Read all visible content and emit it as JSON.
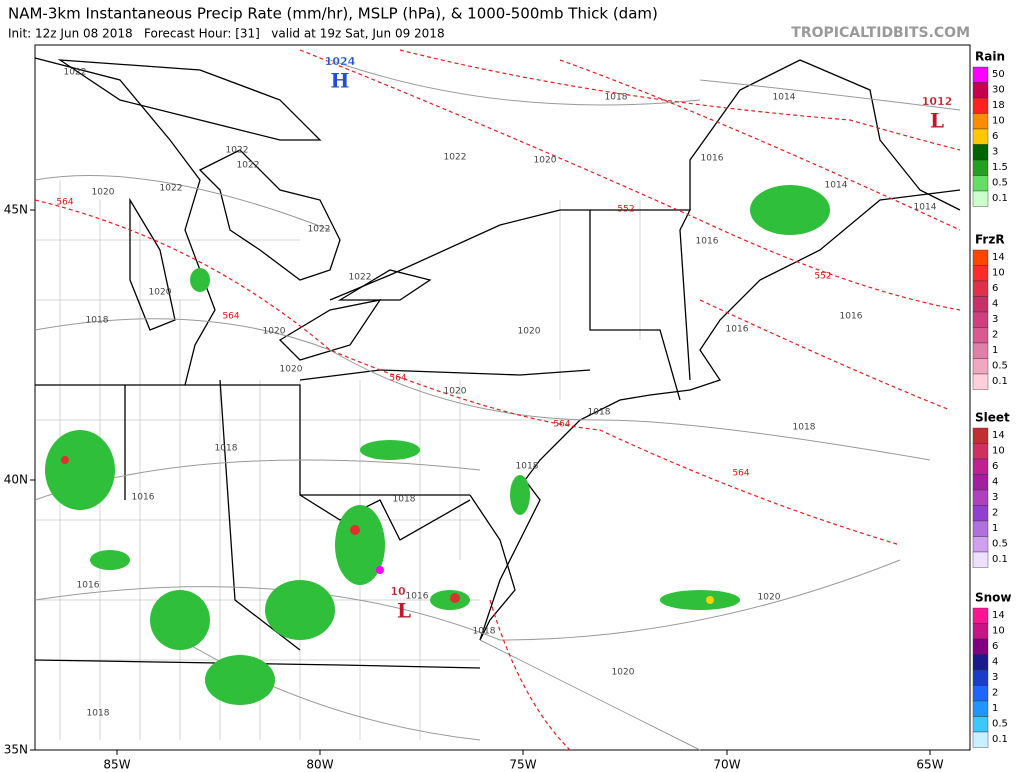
{
  "header": {
    "title": "NAM-3km Instantaneous Precip Rate (mm/hr), MSLP (hPa), & 1000-500mb Thick (dam)",
    "subtitle": "Init: 12z Jun 08 2018   Forecast Hour: [31]   valid at 19z Sat, Jun 09 2018",
    "credit": "TROPICALTIDBITS.COM"
  },
  "axes": {
    "lon_labels": [
      "85W",
      "80W",
      "75W",
      "70W",
      "65W"
    ],
    "lat_labels": [
      "45N",
      "40N",
      "35N"
    ]
  },
  "legend": [
    {
      "title": "Rain",
      "labels": [
        "50",
        "30",
        "18",
        "10",
        "6",
        "3",
        "1.5",
        "0.5",
        "0.1"
      ]
    },
    {
      "title": "FrzR",
      "labels": [
        "14",
        "10",
        "6",
        "4",
        "3",
        "2",
        "1",
        "0.5",
        "0.1"
      ]
    },
    {
      "title": "Sleet",
      "labels": [
        "14",
        "10",
        "6",
        "4",
        "3",
        "2",
        "1",
        "0.5",
        "0.1"
      ]
    },
    {
      "title": "Snow",
      "labels": [
        "14",
        "10",
        "6",
        "4",
        "3",
        "2",
        "1",
        "0.5",
        "0.1"
      ]
    }
  ],
  "map": {
    "pressure_labels": [
      "1022",
      "1022",
      "1022",
      "1020",
      "1022",
      "1022",
      "1022",
      "1020",
      "1018",
      "1014",
      "1016",
      "1014",
      "1014",
      "1016",
      "1016",
      "1016",
      "1020",
      "1018",
      "1020",
      "1020",
      "1022",
      "1020",
      "1020",
      "1018",
      "1018",
      "1018",
      "1018",
      "1018",
      "1016",
      "1016",
      "1016",
      "1018",
      "1020",
      "1020",
      "1018"
    ],
    "thickness_labels": [
      "564",
      "552",
      "552",
      "564",
      "564",
      "564",
      "564"
    ],
    "centers": [
      {
        "letter": "H",
        "value": "1024"
      },
      {
        "letter": "L",
        "value": "1012"
      },
      {
        "letter": "L",
        "value": "10"
      }
    ]
  }
}
